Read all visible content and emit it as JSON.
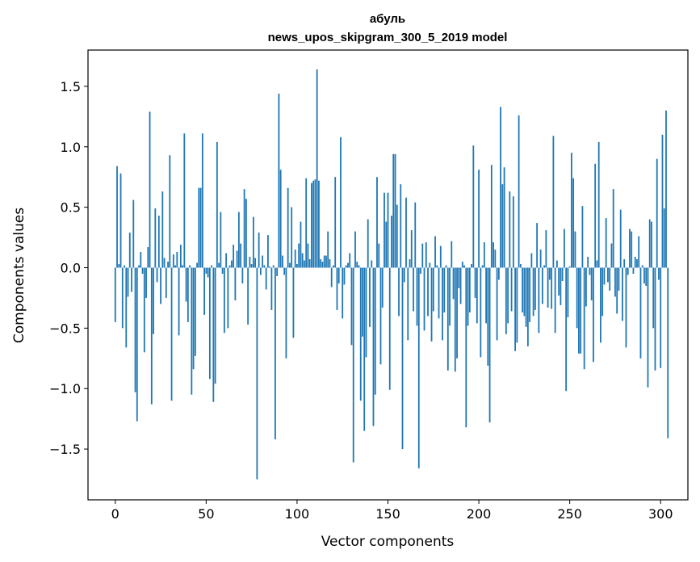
{
  "chart_data": {
    "type": "bar",
    "title_line1": "абуль",
    "title_line2": "news_upos_skipgram_300_5_2019 model",
    "xlabel": "Vector components",
    "ylabel": "Components values",
    "xlim": [
      -15,
      315
    ],
    "ylim": [
      -1.92,
      1.8
    ],
    "x_ticks": [
      0,
      50,
      100,
      150,
      200,
      250,
      300
    ],
    "x_tick_labels": [
      "0",
      "50",
      "100",
      "150",
      "200",
      "250",
      "300"
    ],
    "y_ticks": [
      -1.5,
      -1.0,
      -0.5,
      0.0,
      0.5,
      1.0,
      1.5
    ],
    "y_tick_labels": [
      "−1.5",
      "−1.0",
      "−0.5",
      "0.0",
      "0.5",
      "1.0",
      "1.5"
    ],
    "bar_color": "#1f77b4",
    "values": [
      -0.45,
      0.84,
      0.03,
      0.78,
      -0.5,
      0.02,
      -0.66,
      -0.24,
      0.29,
      -0.2,
      0.56,
      -1.03,
      -1.27,
      0.02,
      0.13,
      -0.05,
      -0.7,
      -0.25,
      0.17,
      1.29,
      -1.13,
      -0.55,
      0.49,
      -0.12,
      0.43,
      -0.3,
      0.63,
      0.08,
      -0.25,
      0.05,
      0.93,
      -1.1,
      0.11,
      0.02,
      0.13,
      -0.56,
      0.19,
      0.02,
      1.11,
      -0.28,
      -0.45,
      0.02,
      -1.05,
      -0.84,
      -0.73,
      0.04,
      0.66,
      0.66,
      1.11,
      -0.39,
      -0.05,
      -0.08,
      -0.92,
      0.02,
      -1.11,
      -0.96,
      1.04,
      0.04,
      0.46,
      -0.05,
      -0.54,
      0.12,
      -0.5,
      0.02,
      0.06,
      0.19,
      -0.27,
      0.14,
      0.46,
      0.2,
      -0.13,
      0.65,
      0.57,
      -0.47,
      0.09,
      0.03,
      0.42,
      0.08,
      -1.75,
      0.29,
      -0.06,
      0.1,
      0.02,
      -0.18,
      0.27,
      0.01,
      -0.35,
      0.02,
      -1.42,
      -0.07,
      1.44,
      0.81,
      0.1,
      -0.06,
      -0.75,
      0.66,
      0.04,
      0.5,
      -0.58,
      0.15,
      0.03,
      0.2,
      0.38,
      0.12,
      0.06,
      0.74,
      0.2,
      0.07,
      0.7,
      0.72,
      0.73,
      1.64,
      0.72,
      0.07,
      0.05,
      0.1,
      0.1,
      0.3,
      0.07,
      -0.16,
      0.02,
      0.75,
      -0.35,
      -0.13,
      1.08,
      -0.42,
      -0.14,
      0.02,
      0.04,
      0.12,
      -0.64,
      -1.61,
      0.3,
      0.05,
      0.02,
      -1.1,
      -0.57,
      -1.35,
      -0.74,
      0.4,
      -0.49,
      0.06,
      -1.31,
      -1.05,
      0.75,
      0.2,
      -0.8,
      -0.33,
      0.62,
      0.38,
      0.62,
      -1.01,
      0.43,
      0.94,
      0.94,
      0.52,
      -0.4,
      0.69,
      -1.5,
      -0.12,
      0.58,
      -0.6,
      0.07,
      0.31,
      -0.36,
      0.54,
      -0.48,
      -1.66,
      -0.05,
      0.2,
      -0.52,
      0.21,
      -0.4,
      0.04,
      -0.61,
      -0.36,
      0.26,
      0.02,
      -0.42,
      0.18,
      -0.6,
      -0.37,
      0.02,
      -0.85,
      -0.48,
      0.22,
      -0.26,
      -0.86,
      -0.75,
      -0.17,
      -0.3,
      0.05,
      0.02,
      -1.32,
      -0.48,
      -0.37,
      0.03,
      1.01,
      -0.25,
      -0.46,
      0.81,
      -0.74,
      0.02,
      0.21,
      -0.46,
      -0.81,
      -1.28,
      0.85,
      0.21,
      0.15,
      -0.6,
      -0.1,
      1.33,
      0.69,
      0.83,
      -0.55,
      -0.46,
      0.63,
      -0.36,
      0.59,
      -0.69,
      -0.62,
      1.26,
      0.03,
      -0.37,
      -0.4,
      -0.49,
      -0.65,
      -0.45,
      0.12,
      -0.4,
      -0.35,
      0.37,
      -0.54,
      0.15,
      -0.3,
      0.02,
      0.31,
      -0.33,
      -0.1,
      -0.34,
      1.09,
      -0.54,
      0.06,
      -0.23,
      -0.31,
      -0.11,
      0.32,
      -1.02,
      -0.41,
      0.01,
      0.95,
      0.74,
      0.3,
      -0.5,
      -0.71,
      -0.71,
      0.51,
      -0.84,
      -0.32,
      0.09,
      -0.06,
      -0.27,
      -0.78,
      0.86,
      0.06,
      1.04,
      -0.62,
      -0.4,
      -0.14,
      0.41,
      -0.12,
      -0.19,
      0.2,
      0.65,
      -0.24,
      -0.38,
      -0.19,
      0.48,
      -0.44,
      0.07,
      -0.66,
      -0.06,
      0.32,
      0.3,
      -0.05,
      0.09,
      0.07,
      0.26,
      -0.75,
      0.02,
      -0.13,
      -0.15,
      -0.99,
      0.4,
      0.38,
      -0.5,
      -0.85,
      0.9,
      -0.1,
      -0.83,
      1.1,
      0.49,
      1.3,
      -1.41
    ]
  }
}
